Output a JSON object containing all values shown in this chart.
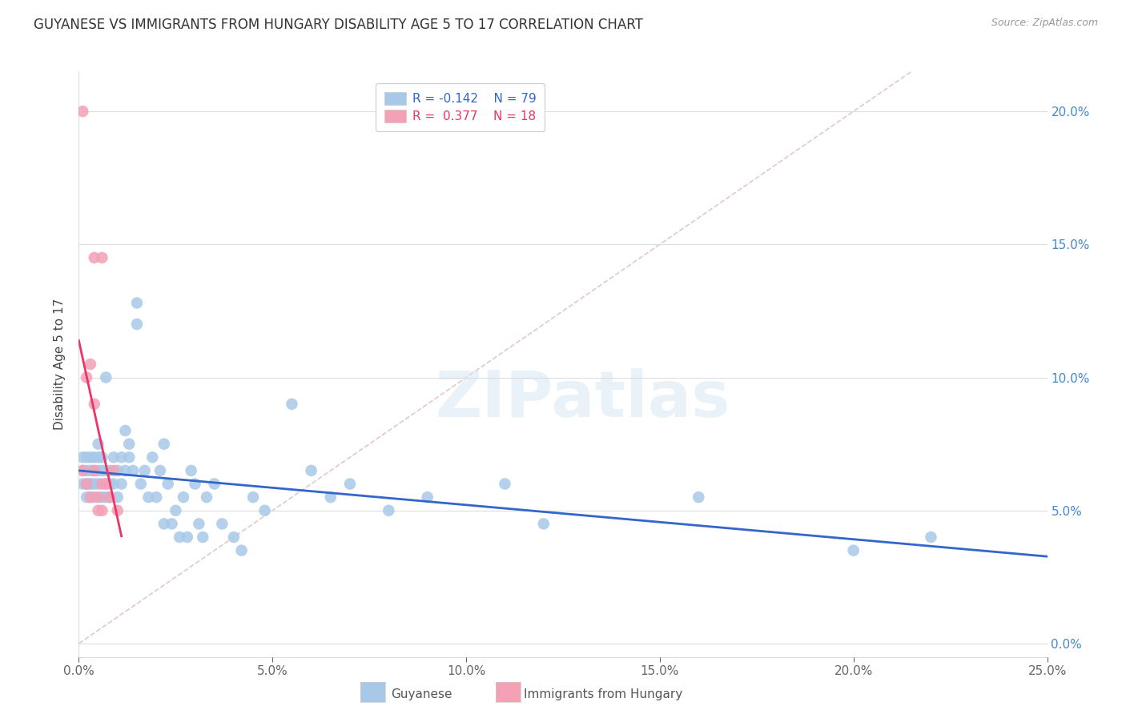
{
  "title": "GUYANESE VS IMMIGRANTS FROM HUNGARY DISABILITY AGE 5 TO 17 CORRELATION CHART",
  "source": "Source: ZipAtlas.com",
  "ylabel_label": "Disability Age 5 to 17",
  "legend_labels": [
    "Guyanese",
    "Immigrants from Hungary"
  ],
  "r_blue": -0.142,
  "n_blue": 79,
  "r_pink": 0.377,
  "n_pink": 18,
  "blue_color": "#A8C8E8",
  "pink_color": "#F4A0B5",
  "blue_line_color": "#3366CC",
  "pink_line_color": "#EE3366",
  "right_axis_color": "#4488CC",
  "watermark_text": "ZIPatlas",
  "xlim": [
    0.0,
    0.25
  ],
  "ylim": [
    -0.005,
    0.215
  ],
  "xticks": [
    0.0,
    0.05,
    0.1,
    0.15,
    0.2,
    0.25
  ],
  "yticks": [
    0.0,
    0.05,
    0.1,
    0.15,
    0.2
  ],
  "blue_x": [
    0.001,
    0.001,
    0.001,
    0.002,
    0.002,
    0.002,
    0.002,
    0.003,
    0.003,
    0.003,
    0.003,
    0.003,
    0.004,
    0.004,
    0.004,
    0.004,
    0.005,
    0.005,
    0.005,
    0.005,
    0.006,
    0.006,
    0.006,
    0.007,
    0.007,
    0.007,
    0.007,
    0.008,
    0.008,
    0.008,
    0.009,
    0.009,
    0.01,
    0.01,
    0.011,
    0.011,
    0.012,
    0.012,
    0.013,
    0.013,
    0.014,
    0.015,
    0.015,
    0.016,
    0.017,
    0.018,
    0.019,
    0.02,
    0.021,
    0.022,
    0.022,
    0.023,
    0.024,
    0.025,
    0.026,
    0.027,
    0.028,
    0.029,
    0.03,
    0.031,
    0.032,
    0.033,
    0.035,
    0.037,
    0.04,
    0.042,
    0.045,
    0.048,
    0.055,
    0.06,
    0.065,
    0.07,
    0.08,
    0.09,
    0.11,
    0.12,
    0.16,
    0.2,
    0.22
  ],
  "blue_y": [
    0.07,
    0.06,
    0.065,
    0.06,
    0.065,
    0.055,
    0.07,
    0.065,
    0.07,
    0.06,
    0.06,
    0.055,
    0.065,
    0.07,
    0.06,
    0.055,
    0.075,
    0.065,
    0.07,
    0.06,
    0.065,
    0.055,
    0.07,
    0.065,
    0.06,
    0.1,
    0.055,
    0.065,
    0.06,
    0.055,
    0.07,
    0.06,
    0.065,
    0.055,
    0.07,
    0.06,
    0.08,
    0.065,
    0.075,
    0.07,
    0.065,
    0.12,
    0.128,
    0.06,
    0.065,
    0.055,
    0.07,
    0.055,
    0.065,
    0.045,
    0.075,
    0.06,
    0.045,
    0.05,
    0.04,
    0.055,
    0.04,
    0.065,
    0.06,
    0.045,
    0.04,
    0.055,
    0.06,
    0.045,
    0.04,
    0.035,
    0.055,
    0.05,
    0.09,
    0.065,
    0.055,
    0.06,
    0.05,
    0.055,
    0.06,
    0.045,
    0.055,
    0.035,
    0.04
  ],
  "pink_x": [
    0.001,
    0.001,
    0.002,
    0.002,
    0.003,
    0.003,
    0.004,
    0.004,
    0.004,
    0.005,
    0.005,
    0.006,
    0.006,
    0.006,
    0.007,
    0.008,
    0.009,
    0.01
  ],
  "pink_y": [
    0.2,
    0.065,
    0.06,
    0.1,
    0.105,
    0.055,
    0.145,
    0.065,
    0.09,
    0.055,
    0.05,
    0.06,
    0.05,
    0.145,
    0.06,
    0.055,
    0.065,
    0.05
  ],
  "diag_color": "#DDBBBB",
  "grid_color": "#DDDDDD",
  "title_fontsize": 12,
  "source_fontsize": 9,
  "tick_fontsize": 11,
  "legend_fontsize": 11
}
